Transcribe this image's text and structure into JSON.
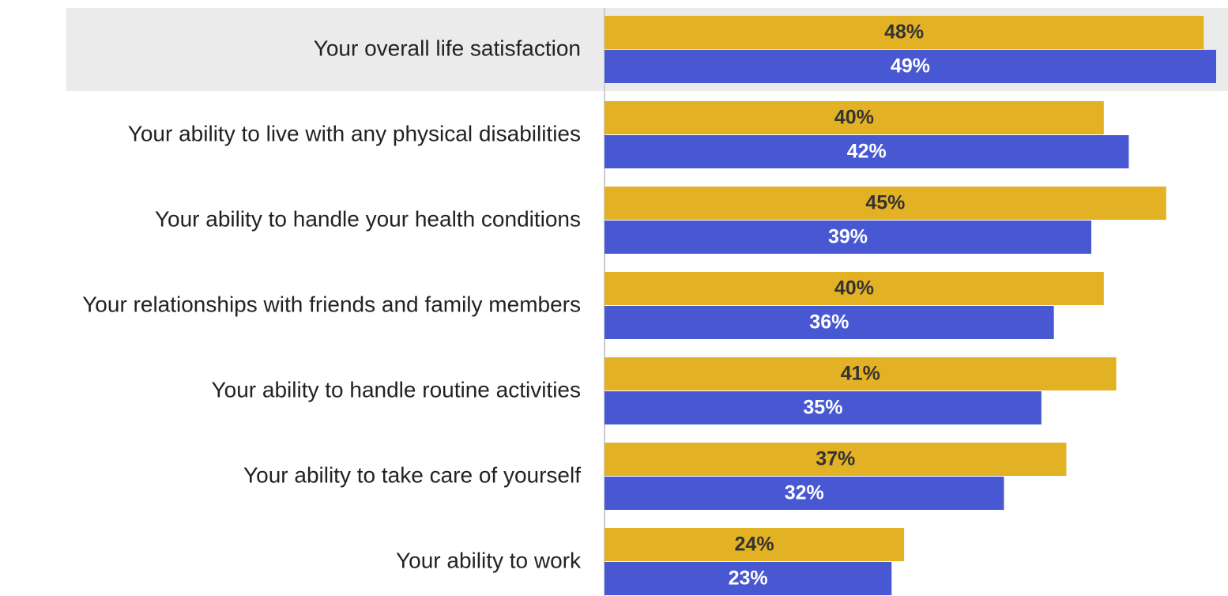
{
  "chart_data": {
    "type": "bar",
    "orientation": "horizontal",
    "categories": [
      "Your overall life satisfaction",
      "Your ability to live with any physical disabilities",
      "Your ability to handle your health conditions",
      "Your relationships with friends and family members",
      "Your ability to handle routine activities",
      "Your ability to take care of yourself",
      "Your ability to work"
    ],
    "series": [
      {
        "color": "#e3b124",
        "label_color": "#333333",
        "values": [
          48,
          40,
          45,
          40,
          41,
          37,
          24
        ],
        "value_labels": [
          "48%",
          "40%",
          "45%",
          "40%",
          "41%",
          "37%",
          "24%"
        ]
      },
      {
        "color": "#4758d2",
        "label_color": "#ffffff",
        "values": [
          49,
          42,
          39,
          36,
          35,
          32,
          23
        ],
        "value_labels": [
          "49%",
          "42%",
          "39%",
          "36%",
          "35%",
          "32%",
          "23%"
        ]
      }
    ],
    "xlim": [
      0,
      49
    ],
    "highlight": 0
  }
}
